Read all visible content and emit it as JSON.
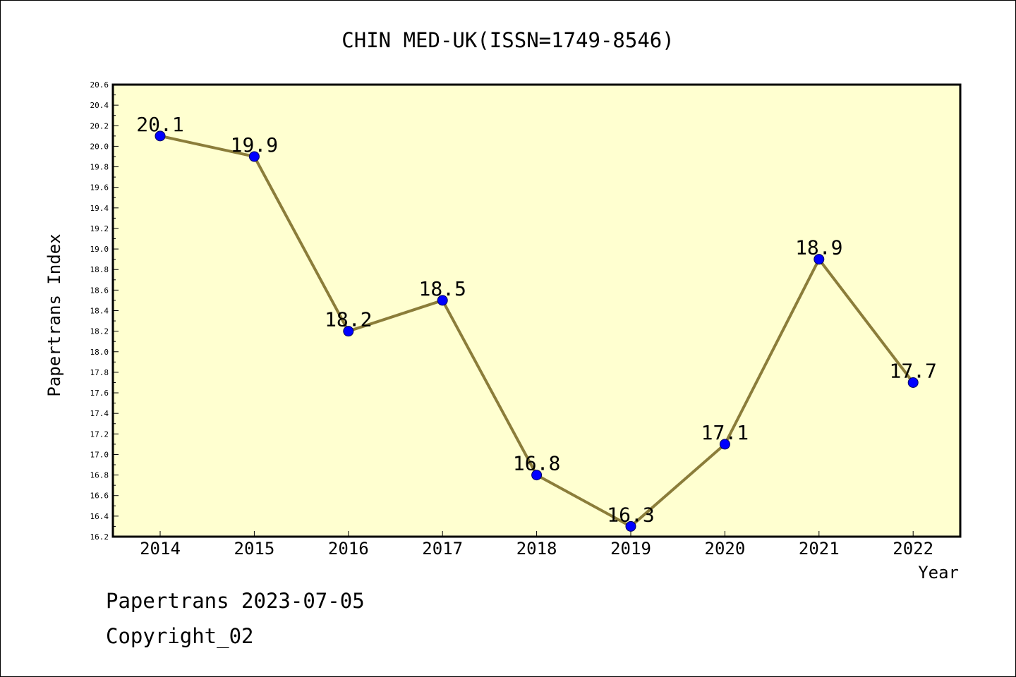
{
  "chart_data": {
    "type": "line",
    "title": "CHIN MED-UK(ISSN=1749-8546)",
    "xlabel": "Year",
    "ylabel": "Papertrans Index",
    "categories": [
      "2014",
      "2015",
      "2016",
      "2017",
      "2018",
      "2019",
      "2020",
      "2021",
      "2022"
    ],
    "series": [
      {
        "values": [
          20.1,
          19.9,
          18.2,
          18.5,
          16.8,
          16.3,
          17.1,
          18.9,
          17.7
        ],
        "labels": [
          "20.1",
          "19.9",
          "18.2",
          "18.5",
          "16.8",
          "16.3",
          "17.1",
          "18.9",
          "17.7"
        ]
      }
    ],
    "ylim": [
      16.2,
      20.6
    ],
    "yticks": [
      "16.2",
      "16.4",
      "16.6",
      "16.8",
      "17.0",
      "17.2",
      "17.4",
      "17.6",
      "17.8",
      "18.0",
      "18.2",
      "18.4",
      "18.6",
      "18.8",
      "19.0",
      "19.2",
      "19.4",
      "19.6",
      "19.8",
      "20.0",
      "20.2",
      "20.4",
      "20.6"
    ],
    "grid": false,
    "colors": {
      "plot_background": "#ffffd0",
      "line": "#8b7d3a",
      "marker": "#0000ff",
      "axis": "#000000"
    }
  },
  "footer": {
    "source": "Papertrans 2023-07-05",
    "copyright": "Copyright_02"
  }
}
